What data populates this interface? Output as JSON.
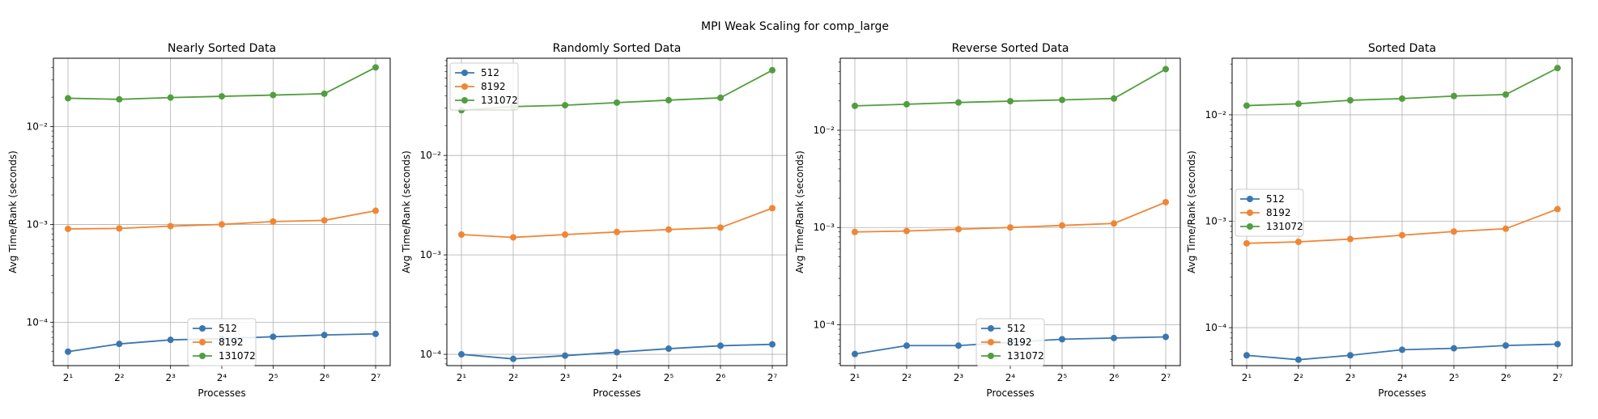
{
  "suptitle": "MPI Weak Scaling for comp_large",
  "colors": {
    "512": "#3a77b0",
    "8192": "#ef8636",
    "131072": "#519e3e"
  },
  "chart_data": [
    {
      "type": "line",
      "title": "Nearly Sorted Data",
      "xlabel": "Processes",
      "ylabel": "Avg Time/Rank (seconds)",
      "x_scale": "log2",
      "y_scale": "log10",
      "x": [
        2,
        4,
        8,
        16,
        32,
        64,
        128
      ],
      "ylim": [
        3.6e-05,
        0.05
      ],
      "yticks": [
        0.0001,
        0.001,
        0.01
      ],
      "grid": true,
      "legend_loc": "lower center",
      "series": [
        {
          "name": "512",
          "values": [
            5e-05,
            6e-05,
            6.6e-05,
            6.8e-05,
            7.1e-05,
            7.4e-05,
            7.6e-05
          ]
        },
        {
          "name": "8192",
          "values": [
            0.0009,
            0.00091,
            0.00096,
            0.001,
            0.00107,
            0.0011,
            0.00138
          ]
        },
        {
          "name": "131072",
          "values": [
            0.0195,
            0.019,
            0.0198,
            0.0204,
            0.021,
            0.0217,
            0.0403
          ]
        }
      ]
    },
    {
      "type": "line",
      "title": "Randomly Sorted Data",
      "xlabel": "Processes",
      "ylabel": "Avg Time/Rank (seconds)",
      "x_scale": "log2",
      "y_scale": "log10",
      "x": [
        2,
        4,
        8,
        16,
        32,
        64,
        128
      ],
      "ylim": [
        7.7e-05,
        0.095
      ],
      "yticks": [
        0.0001,
        0.001,
        0.01
      ],
      "grid": true,
      "legend_loc": "upper left",
      "series": [
        {
          "name": "512",
          "values": [
            0.0001,
            9e-05,
            9.7e-05,
            0.000105,
            0.000114,
            0.000122,
            0.000126
          ]
        },
        {
          "name": "8192",
          "values": [
            0.0016,
            0.0015,
            0.0016,
            0.0017,
            0.0018,
            0.00188,
            0.00295
          ]
        },
        {
          "name": "131072",
          "values": [
            0.0285,
            0.031,
            0.032,
            0.034,
            0.036,
            0.038,
            0.072
          ]
        }
      ]
    },
    {
      "type": "line",
      "title": "Reverse Sorted Data",
      "xlabel": "Processes",
      "ylabel": "Avg Time/Rank (seconds)",
      "x_scale": "log2",
      "y_scale": "log10",
      "x": [
        2,
        4,
        8,
        16,
        32,
        64,
        128
      ],
      "ylim": [
        3.8e-05,
        0.055
      ],
      "yticks": [
        0.0001,
        0.001,
        0.01
      ],
      "grid": true,
      "legend_loc": "lower center",
      "series": [
        {
          "name": "512",
          "values": [
            5e-05,
            6.1e-05,
            6.1e-05,
            6.6e-05,
            7.1e-05,
            7.3e-05,
            7.5e-05
          ]
        },
        {
          "name": "8192",
          "values": [
            0.0009,
            0.00092,
            0.00096,
            0.001,
            0.00105,
            0.0011,
            0.00182
          ]
        },
        {
          "name": "131072",
          "values": [
            0.0178,
            0.0185,
            0.0193,
            0.0199,
            0.0205,
            0.0212,
            0.0425
          ]
        }
      ]
    },
    {
      "type": "line",
      "title": "Sorted Data",
      "xlabel": "Processes",
      "ylabel": "Avg Time/Rank (seconds)",
      "x_scale": "log2",
      "y_scale": "log10",
      "x": [
        2,
        4,
        8,
        16,
        32,
        64,
        128
      ],
      "ylim": [
        4.4e-05,
        0.034
      ],
      "yticks": [
        0.0001,
        0.001,
        0.01
      ],
      "grid": true,
      "legend_loc": "center left",
      "series": [
        {
          "name": "512",
          "values": [
            5.5e-05,
            5e-05,
            5.5e-05,
            6.2e-05,
            6.4e-05,
            6.8e-05,
            7e-05
          ]
        },
        {
          "name": "8192",
          "values": [
            0.00062,
            0.00064,
            0.00068,
            0.00074,
            0.0008,
            0.00085,
            0.0013
          ]
        },
        {
          "name": "131072",
          "values": [
            0.0122,
            0.0127,
            0.0137,
            0.0142,
            0.015,
            0.0155,
            0.0275
          ]
        }
      ]
    }
  ]
}
